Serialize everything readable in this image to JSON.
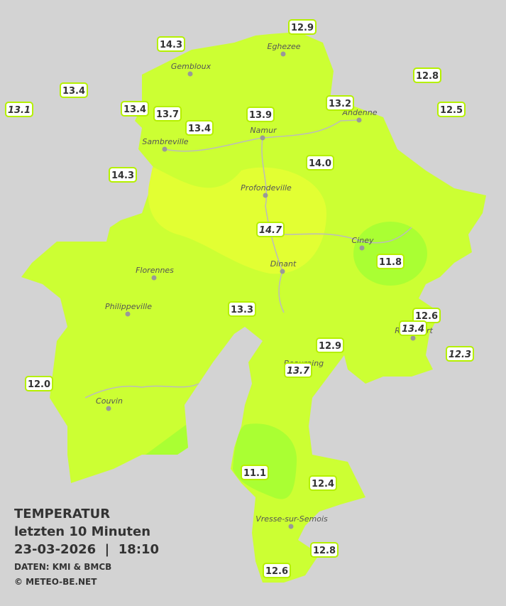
{
  "title": {
    "heading": "TEMPERATUR",
    "period": "letzten 10 Minuten",
    "timestamp": "23-03-2026  |  18:10",
    "source": "DATEN: KMI & BMCB",
    "copyright": "© METEO-BE.NET"
  },
  "cities": [
    {
      "name": "Eghezee"
    },
    {
      "name": "Gembloux"
    },
    {
      "name": "Andenne"
    },
    {
      "name": "Namur"
    },
    {
      "name": "Sambreville"
    },
    {
      "name": "Profondeville"
    },
    {
      "name": "Ciney"
    },
    {
      "name": "Dinant"
    },
    {
      "name": "Florennes"
    },
    {
      "name": "Philippeville"
    },
    {
      "name": "Rochefort"
    },
    {
      "name": "Beauraing"
    },
    {
      "name": "Couvin"
    },
    {
      "name": "Vresse-sur-Semois"
    }
  ],
  "stations": [
    {
      "label": "13.1"
    },
    {
      "label": "13.4"
    },
    {
      "label": "14.3"
    },
    {
      "label": "12.9"
    },
    {
      "label": "12.8"
    },
    {
      "label": "13.2"
    },
    {
      "label": "12.5"
    },
    {
      "label": "13.4"
    },
    {
      "label": "13.7"
    },
    {
      "label": "13.4"
    },
    {
      "label": "13.9"
    },
    {
      "label": "14.3"
    },
    {
      "label": "14.0"
    },
    {
      "label": "14.7"
    },
    {
      "label": "11.8"
    },
    {
      "label": "13.3"
    },
    {
      "label": "12.6"
    },
    {
      "label": "13.4"
    },
    {
      "label": "12.9"
    },
    {
      "label": "12.3"
    },
    {
      "label": "13.7"
    },
    {
      "label": "12.0"
    },
    {
      "label": "11.1"
    },
    {
      "label": "12.4"
    },
    {
      "label": "12.8"
    },
    {
      "label": "12.6"
    }
  ]
}
